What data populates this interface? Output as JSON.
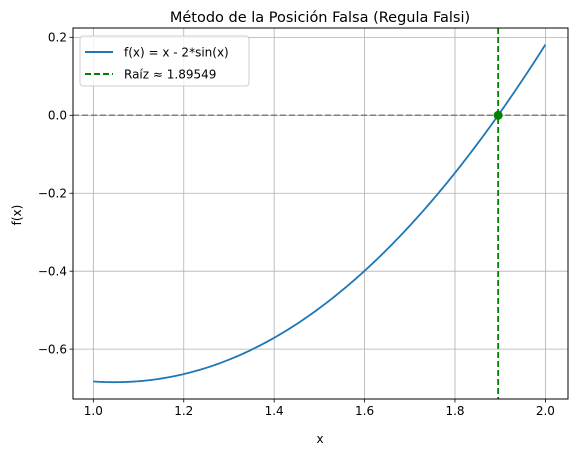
{
  "chart_data": {
    "type": "line",
    "title": "Método de la Posición Falsa (Regula Falsi)",
    "xlabel": "x",
    "ylabel": "f(x)",
    "xlim": [
      0.955,
      2.05
    ],
    "ylim": [
      -0.728,
      0.224
    ],
    "xticks": [
      1.0,
      1.2,
      1.4,
      1.6,
      1.8,
      2.0
    ],
    "xtick_labels": [
      "1.0",
      "1.2",
      "1.4",
      "1.6",
      "1.8",
      "2.0"
    ],
    "yticks": [
      -0.6,
      -0.4,
      -0.2,
      0.0,
      0.2
    ],
    "ytick_labels": [
      "−0.6",
      "−0.4",
      "−0.2",
      "0.0",
      "0.2"
    ],
    "grid": true,
    "legend_position": "top-left",
    "series": [
      {
        "name": "f(x) = x - 2*sin(x)",
        "style": "solid",
        "color": "#1f77b4",
        "function": "x - 2*sin(x)",
        "x_range": [
          1.0,
          2.0
        ]
      }
    ],
    "root": {
      "label": "Raíz ≈ 1.89549",
      "x": 1.89549,
      "y": 0.0,
      "color": "#008000",
      "style": "dashed"
    },
    "reference_line": {
      "y": 0.0,
      "color": "#808080",
      "style": "dashed"
    }
  }
}
